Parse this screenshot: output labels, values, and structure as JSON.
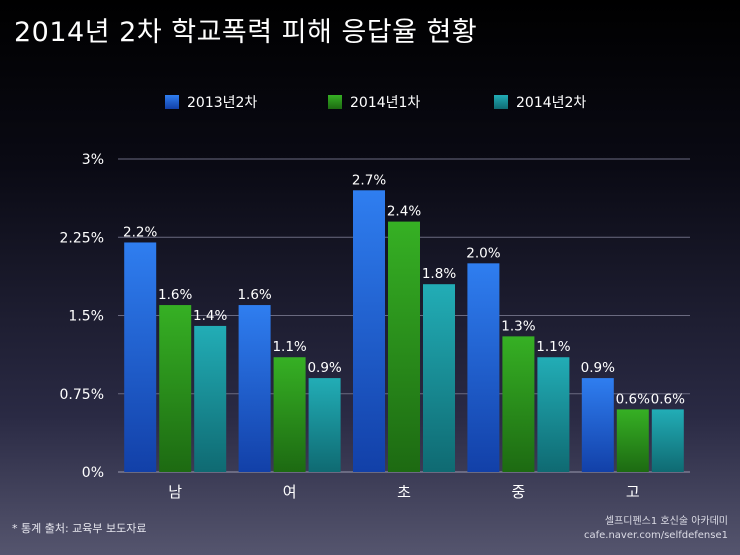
{
  "chart_data": {
    "type": "bar",
    "title": "2014년 2차 학교폭력 피해 응답율 현황",
    "categories": [
      "남",
      "여",
      "초",
      "중",
      "고"
    ],
    "series": [
      {
        "name": "2013년2차",
        "values": [
          2.2,
          1.6,
          2.7,
          2.0,
          0.9
        ],
        "labels": [
          "2.2%",
          "1.6%",
          "2.7%",
          "2.0%",
          "0.9%"
        ],
        "color": "#1f5fd6"
      },
      {
        "name": "2014년1차",
        "values": [
          1.6,
          1.1,
          2.4,
          1.3,
          0.6
        ],
        "labels": [
          "1.6%",
          "1.1%",
          "2.4%",
          "1.3%",
          "0.6%"
        ],
        "color": "#2e9a1e"
      },
      {
        "name": "2014년2차",
        "values": [
          1.4,
          0.9,
          1.8,
          1.1,
          0.6
        ],
        "labels": [
          "1.4%",
          "0.9%",
          "1.8%",
          "1.1%",
          "0.6%"
        ],
        "color": "#1a9aa2"
      }
    ],
    "y_ticks": [
      {
        "value": 0,
        "label": "0%"
      },
      {
        "value": 0.75,
        "label": "0.75%"
      },
      {
        "value": 1.5,
        "label": "1.5%"
      },
      {
        "value": 2.25,
        "label": "2.25%"
      },
      {
        "value": 3,
        "label": "3%"
      }
    ],
    "ylim": [
      0,
      3
    ],
    "legend_position": "top-center",
    "grid": true
  },
  "footnote": "* 통계 출처: 교육부 보도자료",
  "credit": {
    "line1": "셀프디펜스1 호신술 아카데미",
    "line2": "cafe.naver.com/selfdefense1"
  }
}
